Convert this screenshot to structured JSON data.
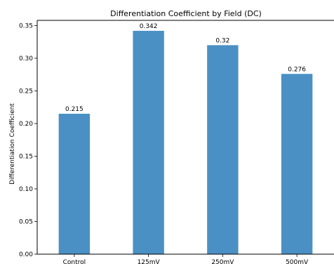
{
  "chart_data": {
    "type": "bar",
    "title": "Differentiation Coefficient by Field (DC)",
    "xlabel": "",
    "ylabel": "Differentiation Coefficient",
    "categories": [
      "Control",
      "125mV",
      "250mV",
      "500mV"
    ],
    "values": [
      0.215,
      0.342,
      0.32,
      0.276
    ],
    "data_labels": [
      "0.215",
      "0.342",
      "0.32",
      "0.276"
    ],
    "ylim": [
      0,
      0.358
    ],
    "yticks": [
      0.0,
      0.05,
      0.1,
      0.15,
      0.2,
      0.25,
      0.3,
      0.35
    ],
    "ytick_labels": [
      "0.00",
      "0.05",
      "0.10",
      "0.15",
      "0.20",
      "0.25",
      "0.30",
      "0.35"
    ],
    "bar_color": "#4a90c4",
    "grid": false,
    "legend": "none"
  }
}
